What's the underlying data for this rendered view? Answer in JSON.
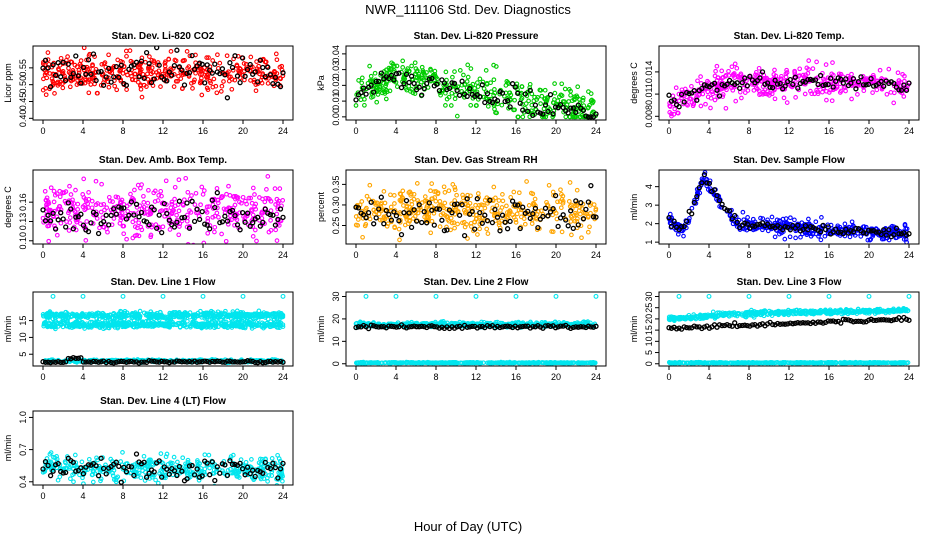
{
  "figure": {
    "title": "NWR_111106  Std. Dev. Diagnostics",
    "xlabel": "Hour of Day (UTC)"
  },
  "chart_data": [
    {
      "type": "scatter",
      "title": "Stan. Dev. Li-820 CO2",
      "ylabel": "Licor ppm",
      "xlim": [
        -1,
        25
      ],
      "ylim": [
        0.395,
        0.615
      ],
      "xticks": [
        0,
        4,
        8,
        12,
        16,
        20,
        24
      ],
      "yticks": [
        0.4,
        0.45,
        0.5,
        0.55
      ],
      "yticklabels": [
        "0.40",
        "0.45",
        "0.50",
        "0.55"
      ],
      "series": [
        {
          "name": "samples",
          "color": "#ff0000",
          "values_summary": {
            "x_range": [
              0,
              24
            ],
            "y_center": 0.53,
            "y_spread": 0.03,
            "y_min": 0.4,
            "y_max": 0.61
          }
        },
        {
          "name": "hourly",
          "color": "#000000",
          "values_summary": {
            "x_range": [
              0,
              24
            ],
            "y_center": 0.54,
            "y_spread": 0.02
          }
        }
      ]
    },
    {
      "type": "scatter",
      "title": "Stan. Dev. Li-820 Pressure",
      "ylabel": "kPa",
      "xlim": [
        -1,
        25
      ],
      "ylim": [
        -0.002,
        0.045
      ],
      "xticks": [
        0,
        4,
        8,
        12,
        16,
        20,
        24
      ],
      "yticks": [
        0.0,
        0.01,
        0.02,
        0.03,
        0.04
      ],
      "yticklabels": [
        "0.00",
        "0.01",
        "0.02",
        "0.03",
        "0.04"
      ],
      "series": [
        {
          "name": "samples",
          "color": "#00cc00",
          "values_summary": {
            "x_range": [
              0,
              24
            ],
            "peak_hour": 4,
            "y_start": 0.015,
            "y_peak": 0.028,
            "y_end": 0.004
          }
        },
        {
          "name": "hourly",
          "color": "#000000",
          "values_summary": {
            "x_range": [
              0,
              24
            ],
            "peak_hour": 4,
            "y_peak": 0.025,
            "y_end": 0.004
          }
        }
      ]
    },
    {
      "type": "scatter",
      "title": "Stan. Dev. Li-820 Temp.",
      "ylabel": "degrees C",
      "xlim": [
        -1,
        25
      ],
      "ylim": [
        0.0075,
        0.0175
      ],
      "xticks": [
        0,
        4,
        8,
        12,
        16,
        20,
        24
      ],
      "yticks": [
        0.008,
        0.011,
        0.014
      ],
      "yticklabels": [
        "0.008",
        "0.011",
        "0.014"
      ],
      "series": [
        {
          "name": "samples",
          "color": "#ff00ff",
          "values_summary": {
            "x_range": [
              0,
              24
            ],
            "y_start": 0.0095,
            "y_plateau": 0.0128,
            "y_max": 0.0175
          }
        },
        {
          "name": "hourly",
          "color": "#000000",
          "values_summary": {
            "x_range": [
              0,
              24
            ],
            "y_start": 0.01,
            "y_plateau": 0.0126
          }
        }
      ]
    },
    {
      "type": "scatter",
      "title": "Stan. Dev. Amb. Box Temp.",
      "ylabel": "degrees C",
      "xlim": [
        -1,
        25
      ],
      "ylim": [
        0.095,
        0.21
      ],
      "xticks": [
        0,
        4,
        8,
        12,
        16,
        20,
        24
      ],
      "yticks": [
        0.1,
        0.13,
        0.16
      ],
      "yticklabels": [
        "0.10",
        "0.13",
        "0.16"
      ],
      "series": [
        {
          "name": "samples",
          "color": "#ff00ff",
          "values_summary": {
            "x_range": [
              0,
              24
            ],
            "y_center": 0.145,
            "y_spread": 0.022
          }
        },
        {
          "name": "hourly",
          "color": "#000000",
          "values_summary": {
            "x_range": [
              0,
              24
            ],
            "y_center": 0.135,
            "y_spread": 0.012
          }
        }
      ]
    },
    {
      "type": "scatter",
      "title": "Stan. Dev. Gas Stream RH",
      "ylabel": "percent",
      "xlim": [
        -1,
        25
      ],
      "ylim": [
        0.205,
        0.385
      ],
      "xticks": [
        0,
        4,
        8,
        12,
        16,
        20,
        24
      ],
      "yticks": [
        0.25,
        0.3,
        0.35
      ],
      "yticklabels": [
        "0.25",
        "0.30",
        "0.35"
      ],
      "series": [
        {
          "name": "samples",
          "color": "#ffa500",
          "values_summary": {
            "x_range": [
              0,
              24
            ],
            "y_center": 0.285,
            "y_spread": 0.03,
            "y_max": 0.38
          }
        },
        {
          "name": "hourly",
          "color": "#000000",
          "values_summary": {
            "x_range": [
              0,
              24
            ],
            "y_center": 0.28,
            "y_spread": 0.025
          }
        }
      ]
    },
    {
      "type": "scatter",
      "title": "Stan. Dev. Sample Flow",
      "ylabel": "ml/min",
      "xlim": [
        -1,
        25
      ],
      "ylim": [
        0.9,
        4.9
      ],
      "xticks": [
        0,
        4,
        8,
        12,
        16,
        20,
        24
      ],
      "yticks": [
        1,
        2,
        3,
        4
      ],
      "yticklabels": [
        "1",
        "2",
        "3",
        "4"
      ],
      "series": [
        {
          "name": "samples",
          "color": "#0000ff",
          "values_summary": {
            "x_range": [
              0,
              24
            ],
            "y_start": 2.2,
            "peak_hour": 3.5,
            "y_peak": 4.7,
            "y_end": 1.4
          }
        },
        {
          "name": "hourly",
          "color": "#000000",
          "values_summary": {
            "x_range": [
              0,
              24
            ],
            "y_peak": 3.9,
            "y_end": 1.6
          }
        }
      ]
    },
    {
      "type": "scatter",
      "title": "Stan. Dev. Line 1 Flow",
      "ylabel": "ml/min",
      "xlim": [
        -1,
        25
      ],
      "ylim": [
        1.5,
        23.5
      ],
      "xticks": [
        0,
        4,
        8,
        12,
        16,
        20,
        24
      ],
      "yticks": [
        5,
        10,
        15
      ],
      "yticklabels": [
        "5",
        "10",
        "15"
      ],
      "series": [
        {
          "name": "band_upper",
          "color": "#00e5ee",
          "values_summary": {
            "x_range": [
              0,
              24
            ],
            "y_center": 16.5
          }
        },
        {
          "name": "band_lower",
          "color": "#00e5ee",
          "values_summary": {
            "x_range": [
              0,
              24
            ],
            "y_center": 13.8
          }
        },
        {
          "name": "low",
          "color": "#00e5ee",
          "values_summary": {
            "x_range": [
              0,
              24
            ],
            "y_center": 3.0
          }
        },
        {
          "name": "hourly",
          "color": "#000000",
          "values_summary": {
            "x_range": [
              0,
              24
            ],
            "y_center": 2.7,
            "y_peak_near_hour_3": 4.0
          }
        }
      ]
    },
    {
      "type": "scatter",
      "title": "Stan. Dev. Line 2 Flow",
      "ylabel": "ml/min",
      "xlim": [
        -1,
        25
      ],
      "ylim": [
        -1,
        32
      ],
      "xticks": [
        0,
        4,
        8,
        12,
        16,
        20,
        24
      ],
      "yticks": [
        0,
        10,
        20,
        30
      ],
      "yticklabels": [
        "0",
        "10",
        "20",
        "30"
      ],
      "series": [
        {
          "name": "band",
          "color": "#00e5ee",
          "values_summary": {
            "x_range": [
              0,
              24
            ],
            "y_center": 17.5
          }
        },
        {
          "name": "zero",
          "color": "#00e5ee",
          "values_summary": {
            "x_range": [
              0,
              24
            ],
            "y_center": 0.3
          }
        },
        {
          "name": "hourly",
          "color": "#000000",
          "values_summary": {
            "x_range": [
              0,
              24
            ],
            "y_center": 16.5
          }
        }
      ]
    },
    {
      "type": "scatter",
      "title": "Stan. Dev. Line 3 Flow",
      "ylabel": "ml/min",
      "xlim": [
        -1,
        25
      ],
      "ylim": [
        -1,
        32
      ],
      "xticks": [
        0,
        4,
        8,
        12,
        16,
        20,
        24
      ],
      "yticks": [
        0,
        5,
        10,
        15,
        20,
        25,
        30
      ],
      "yticklabels": [
        "0",
        "5",
        "10",
        "15",
        "20",
        "25",
        "30"
      ],
      "series": [
        {
          "name": "band",
          "color": "#00e5ee",
          "values_summary": {
            "x_range": [
              0,
              24
            ],
            "y_start": 20,
            "y_end": 24
          }
        },
        {
          "name": "zero",
          "color": "#00e5ee",
          "values_summary": {
            "x_range": [
              0,
              24
            ],
            "y_center": 0.3
          }
        },
        {
          "name": "hourly",
          "color": "#000000",
          "values_summary": {
            "x_range": [
              0,
              24
            ],
            "y_start": 16,
            "y_end": 20
          }
        }
      ]
    },
    {
      "type": "scatter",
      "title": "Stan. Dev. Line 4 (LT) Flow",
      "ylabel": "ml/min",
      "xlim": [
        -1,
        25
      ],
      "ylim": [
        0.37,
        1.06
      ],
      "xticks": [
        0,
        4,
        8,
        12,
        16,
        20,
        24
      ],
      "yticks": [
        0.4,
        0.7,
        1.0
      ],
      "yticklabels": [
        "0.4",
        "0.7",
        "1.0"
      ],
      "series": [
        {
          "name": "samples",
          "color": "#00e5ee",
          "values_summary": {
            "x_range": [
              0,
              24
            ],
            "y_center": 0.52,
            "y_spread": 0.06,
            "y_max": 1.05
          }
        },
        {
          "name": "hourly",
          "color": "#000000",
          "values_summary": {
            "x_range": [
              0,
              24
            ],
            "y_center": 0.52,
            "y_spread": 0.05
          }
        }
      ]
    }
  ]
}
